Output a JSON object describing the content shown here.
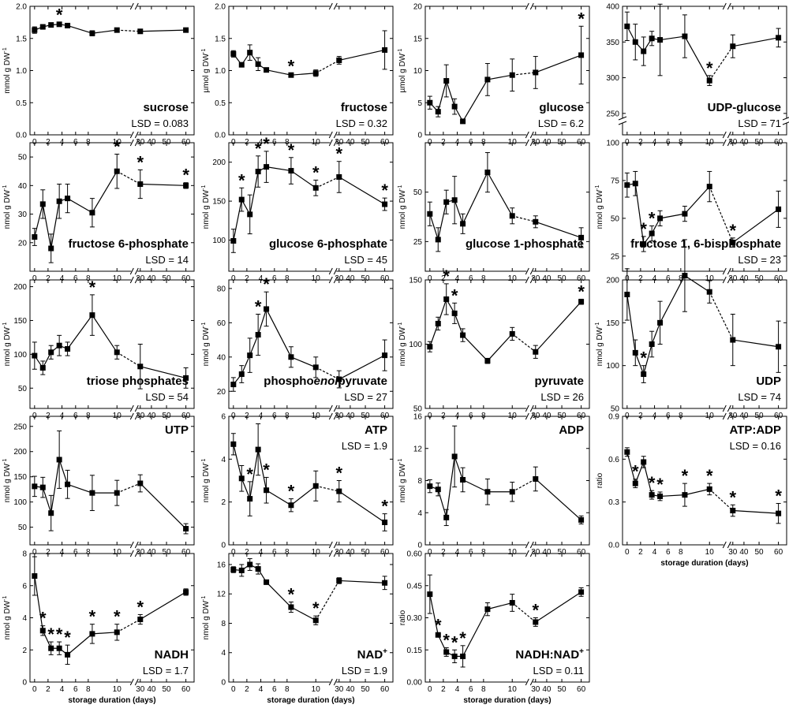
{
  "figure": {
    "x_ticks": [
      0,
      2,
      4,
      6,
      8,
      10,
      30,
      40,
      50,
      60
    ],
    "x_tick_labels": [
      "0",
      "2",
      "4",
      "6",
      "8",
      "10",
      "30",
      "40",
      "50",
      "60"
    ],
    "xlabel": "storage duration (days)"
  },
  "chart_data": [
    {
      "type": "line",
      "name": "sucrose",
      "lsd": "LSD = 0.083",
      "ylabel": "mmol g DW",
      "ylabel_sup": "-1",
      "ylim": [
        0,
        2.0
      ],
      "yticks": [
        0,
        0.5,
        1.0,
        1.5,
        2.0
      ],
      "ytick_labels": [
        "0.0",
        "0.5",
        "1.0",
        "1.5",
        "2.0"
      ],
      "x": [
        0,
        1,
        2,
        3,
        4,
        7,
        10,
        30,
        60
      ],
      "y": [
        1.63,
        1.68,
        1.71,
        1.72,
        1.7,
        1.58,
        1.63,
        1.61,
        1.63
      ],
      "err": [
        0.05,
        0.03,
        0.03,
        0.03,
        0.03,
        0.04,
        0.02,
        0.02,
        0.02
      ],
      "sig": [
        3
      ]
    },
    {
      "type": "line",
      "name": "fructose",
      "lsd": "LSD = 0.32",
      "ylabel": "µmol g DW",
      "ylabel_sup": "-1",
      "ylim": [
        0,
        2.0
      ],
      "yticks": [
        0,
        0.5,
        1.0,
        1.5,
        2.0
      ],
      "ytick_labels": [
        "0.0",
        "0.5",
        "1.0",
        "1.5",
        "2.0"
      ],
      "x": [
        0,
        1,
        2,
        3,
        4,
        7,
        10,
        30,
        60
      ],
      "y": [
        1.26,
        1.09,
        1.28,
        1.1,
        1.01,
        0.93,
        0.96,
        1.16,
        1.32
      ],
      "err": [
        0.05,
        0.03,
        0.12,
        0.1,
        0.03,
        0.02,
        0.05,
        0.06,
        0.3
      ],
      "sig": [
        7
      ]
    },
    {
      "type": "line",
      "name": "glucose",
      "lsd": "LSD = 6.2",
      "ylabel": "µmol g DW",
      "ylabel_sup": "-1",
      "ylim": [
        0,
        20
      ],
      "yticks": [
        0,
        5,
        10,
        15,
        20
      ],
      "ytick_labels": [
        "0",
        "5",
        "10",
        "15",
        "20"
      ],
      "x": [
        0,
        1,
        2,
        3,
        4,
        7,
        10,
        30,
        60
      ],
      "y": [
        5.0,
        3.6,
        8.4,
        4.4,
        2.1,
        8.6,
        9.3,
        9.7,
        12.4
      ],
      "err": [
        1.0,
        0.8,
        2.5,
        1.2,
        0.2,
        2.5,
        2.5,
        2.5,
        4.5
      ],
      "sig": [
        60
      ]
    },
    {
      "type": "line",
      "name": "UDP-glucose",
      "lsd": "LSD = 71",
      "ylabel": "",
      "ylabel_sup": "",
      "ylim": [
        220,
        400
      ],
      "ybreak": true,
      "yticks": [
        250,
        300,
        350,
        400
      ],
      "ytick_labels": [
        "250",
        "300",
        "350",
        "400"
      ],
      "x": [
        0,
        1,
        2,
        3,
        4,
        7,
        10,
        30,
        60
      ],
      "y": [
        372,
        350,
        337,
        355,
        353,
        358,
        296,
        344,
        356
      ],
      "err": [
        20,
        25,
        20,
        10,
        50,
        30,
        7,
        16,
        13
      ],
      "sig": [
        10
      ]
    },
    {
      "type": "line",
      "name": "fructose 6-phosphate",
      "lsd": "LSD = 14",
      "ylabel": "nmol g DW",
      "ylabel_sup": "-1",
      "ylim": [
        10,
        55
      ],
      "yticks": [
        20,
        30,
        40,
        50
      ],
      "ytick_labels": [
        "20",
        "30",
        "40",
        "50"
      ],
      "x": [
        0,
        1,
        2,
        3,
        4,
        7,
        10,
        30,
        60
      ],
      "y": [
        22,
        33.5,
        18,
        34.5,
        35.5,
        30.5,
        45,
        40.5,
        40
      ],
      "err": [
        3,
        5,
        5,
        6,
        5,
        5,
        6,
        5,
        1
      ],
      "sig": [
        10,
        30,
        60
      ]
    },
    {
      "type": "line",
      "name": "glucose 6-phosphate",
      "lsd": "LSD = 45",
      "ylabel": "nmol g DW",
      "ylabel_sup": "-1",
      "ylim": [
        60,
        225
      ],
      "yticks": [
        100,
        150,
        200
      ],
      "ytick_labels": [
        "100",
        "150",
        "200"
      ],
      "x": [
        0,
        1,
        2,
        3,
        4,
        7,
        10,
        30,
        60
      ],
      "y": [
        99,
        152,
        133,
        188,
        194,
        189,
        167,
        181,
        146
      ],
      "err": [
        15,
        15,
        25,
        20,
        20,
        17,
        10,
        20,
        8
      ],
      "sig": [
        1,
        3,
        4,
        7,
        10,
        30,
        60
      ]
    },
    {
      "type": "line",
      "name": "glucose 1-phosphate",
      "lsd": "",
      "ylabel": "nmol g DW",
      "ylabel_sup": "-1",
      "ylim": [
        10,
        75
      ],
      "yticks": [
        25,
        50
      ],
      "ytick_labels": [
        "25",
        "50"
      ],
      "x": [
        0,
        1,
        2,
        3,
        4,
        7,
        10,
        30,
        60
      ],
      "y": [
        39,
        26,
        45,
        46,
        34,
        60,
        38,
        35,
        27
      ],
      "err": [
        6,
        6,
        6,
        12,
        5,
        10,
        4,
        3,
        5
      ],
      "sig": []
    },
    {
      "type": "line",
      "name": "fructose 1, 6-bisphosphate",
      "lsd": "LSD = 23",
      "ylabel": "nmol g DW",
      "ylabel_sup": "-1",
      "ylim": [
        15,
        100
      ],
      "yticks": [
        25,
        50,
        75,
        100
      ],
      "ytick_labels": [
        "25",
        "50",
        "75",
        "100"
      ],
      "x": [
        0,
        1,
        2,
        3,
        4,
        7,
        10,
        30,
        60
      ],
      "y": [
        72,
        73,
        33,
        40,
        50,
        53,
        71,
        34,
        56
      ],
      "err": [
        8,
        8,
        5,
        5,
        5,
        5,
        10,
        3,
        12
      ],
      "sig": [
        2,
        3,
        30
      ]
    },
    {
      "type": "line",
      "name": "triose phosphates",
      "lsd": "LSD = 54",
      "ylabel": "nmol g DW",
      "ylabel_sup": "-1",
      "ylim": [
        20,
        210
      ],
      "yticks": [
        50,
        100,
        150,
        200
      ],
      "ytick_labels": [
        "50",
        "100",
        "150",
        "200"
      ],
      "x": [
        0,
        1,
        2,
        3,
        4,
        7,
        10,
        30,
        60
      ],
      "y": [
        98,
        80,
        103,
        113,
        108,
        158,
        103,
        82,
        65
      ],
      "err": [
        20,
        10,
        10,
        15,
        10,
        30,
        10,
        33,
        15
      ],
      "sig": [
        7
      ]
    },
    {
      "type": "line",
      "name": "phosphoenolpyruvate",
      "name_parts": [
        "phospho",
        "enol",
        "pyruvate"
      ],
      "lsd": "LSD = 27",
      "ylabel": "nmol g DW",
      "ylabel_sup": "-1",
      "ylim": [
        10,
        85
      ],
      "yticks": [
        20,
        40,
        60,
        80
      ],
      "ytick_labels": [
        "20",
        "40",
        "60",
        "80"
      ],
      "x": [
        0,
        1,
        2,
        3,
        4,
        7,
        10,
        30,
        60
      ],
      "y": [
        24,
        30,
        41,
        53,
        68,
        40,
        34,
        27,
        41
      ],
      "err": [
        4,
        5,
        10,
        12,
        10,
        6,
        6,
        5,
        9
      ],
      "sig": [
        3,
        4
      ]
    },
    {
      "type": "line",
      "name": "pyruvate",
      "lsd": "LSD = 26",
      "ylabel": "nmol g DW",
      "ylabel_sup": "-1",
      "ylim": [
        50,
        150
      ],
      "yticks": [
        50,
        100,
        150
      ],
      "ytick_labels": [
        "50",
        "100",
        "150"
      ],
      "x": [
        0,
        1,
        2,
        3,
        4,
        7,
        10,
        30,
        60
      ],
      "y": [
        98,
        116,
        135,
        124,
        107,
        87,
        108,
        94,
        133
      ],
      "err": [
        4,
        5,
        12,
        8,
        5,
        2,
        5,
        5,
        2
      ],
      "sig": [
        2,
        3,
        60
      ]
    },
    {
      "type": "line",
      "name": "UDP",
      "lsd": "LSD = 74",
      "ylabel": "nmol g DW",
      "ylabel_sup": "-1",
      "ylim": [
        50,
        200
      ],
      "yticks": [
        50,
        100,
        150,
        200
      ],
      "ytick_labels": [
        "50",
        "100",
        "150",
        "200"
      ],
      "x": [
        0,
        1,
        2,
        3,
        4,
        7,
        10,
        30,
        60
      ],
      "y": [
        183,
        115,
        90,
        125,
        150,
        205,
        186,
        130,
        122
      ],
      "err": [
        30,
        15,
        10,
        15,
        25,
        42,
        13,
        30,
        30
      ],
      "sig": [
        2
      ]
    },
    {
      "type": "line",
      "name": "UTP",
      "lsd": "",
      "ylabel": "nmol g DW",
      "ylabel_sup": "-1",
      "ylim": [
        15,
        270
      ],
      "yticks": [
        50,
        100,
        150,
        200,
        250
      ],
      "ytick_labels": [
        "50",
        "100",
        "150",
        "200",
        "250"
      ],
      "x": [
        0,
        1,
        2,
        3,
        4,
        7,
        10,
        30,
        60
      ],
      "y": [
        131,
        129,
        78,
        184,
        135,
        118,
        118,
        137,
        47
      ],
      "err": [
        20,
        20,
        35,
        57,
        28,
        35,
        25,
        17,
        10
      ],
      "sig": []
    },
    {
      "type": "line",
      "name": "ATP",
      "lsd": "LSD = 1.9",
      "ylabel": "nmol g DW",
      "ylabel_sup": "-1",
      "ylim": [
        0,
        6
      ],
      "yticks": [
        0,
        2,
        4,
        6
      ],
      "ytick_labels": [
        "0",
        "2",
        "4",
        "6"
      ],
      "x": [
        0,
        1,
        2,
        3,
        4,
        7,
        10,
        30,
        60
      ],
      "y": [
        4.7,
        3.1,
        2.15,
        4.45,
        2.55,
        1.85,
        2.75,
        2.5,
        1.05
      ],
      "err": [
        0.5,
        0.6,
        0.8,
        1.2,
        0.6,
        0.3,
        0.7,
        0.5,
        0.4
      ],
      "sig": [
        2,
        4,
        7,
        30,
        60
      ]
    },
    {
      "type": "line",
      "name": "ADP",
      "lsd": "",
      "ylabel": "nmol g DW",
      "ylabel_sup": "-1",
      "ylim": [
        0,
        16
      ],
      "yticks": [
        0,
        4,
        8,
        12,
        16
      ],
      "ytick_labels": [
        "0",
        "4",
        "8",
        "12",
        "16"
      ],
      "x": [
        0,
        1,
        2,
        3,
        4,
        7,
        10,
        30,
        60
      ],
      "y": [
        7.3,
        6.9,
        3.4,
        11.0,
        8.1,
        6.6,
        6.6,
        8.2,
        3.1
      ],
      "err": [
        0.8,
        0.8,
        1.0,
        3.8,
        1.5,
        1.6,
        1.2,
        1.5,
        0.5
      ],
      "sig": []
    },
    {
      "type": "line",
      "name": "ATP:ADP",
      "lsd": "LSD = 0.16",
      "ylabel": "ratio",
      "ylabel_sup": "",
      "ylim": [
        0,
        0.9
      ],
      "yticks": [
        0,
        0.3,
        0.6,
        0.9
      ],
      "ytick_labels": [
        "0.0",
        "0.3",
        "0.6",
        "0.9"
      ],
      "x": [
        0,
        1,
        2,
        3,
        4,
        7,
        10,
        30,
        60
      ],
      "y": [
        0.65,
        0.43,
        0.58,
        0.35,
        0.34,
        0.35,
        0.39,
        0.24,
        0.22
      ],
      "err": [
        0.03,
        0.03,
        0.04,
        0.03,
        0.03,
        0.08,
        0.04,
        0.04,
        0.07
      ],
      "sig": [
        1,
        3,
        4,
        7,
        10,
        30,
        60
      ]
    },
    {
      "type": "line",
      "name": "NADH",
      "lsd": "LSD = 1.7",
      "ylabel": "nmol g DW",
      "ylabel_sup": "-1",
      "ylim": [
        0,
        8
      ],
      "yticks": [
        0,
        2,
        4,
        6,
        8
      ],
      "ytick_labels": [
        "0",
        "2",
        "4",
        "6",
        "8"
      ],
      "x": [
        0,
        1,
        2,
        3,
        4,
        7,
        10,
        30,
        60
      ],
      "y": [
        6.6,
        3.2,
        2.1,
        2.1,
        1.7,
        3.0,
        3.1,
        3.9,
        5.6
      ],
      "err": [
        1.2,
        0.3,
        0.4,
        0.4,
        0.6,
        0.6,
        0.5,
        0.3,
        0.2
      ],
      "sig": [
        1,
        2,
        3,
        4,
        7,
        10,
        30
      ]
    },
    {
      "type": "line",
      "name": "NAD+",
      "name_parts": [
        "NAD",
        "+"
      ],
      "lsd": "LSD = 1.9",
      "ylabel": "nmol g DW",
      "ylabel_sup": "-1",
      "ylim": [
        0,
        17.5
      ],
      "yticks": [
        0,
        4,
        8,
        12,
        16
      ],
      "ytick_labels": [
        "0",
        "4",
        "8",
        "12",
        "16"
      ],
      "x": [
        0,
        1,
        2,
        3,
        4,
        7,
        10,
        30,
        60
      ],
      "y": [
        15.3,
        15.2,
        16.0,
        15.4,
        13.6,
        10.2,
        8.4,
        13.8,
        13.5
      ],
      "err": [
        0.4,
        0.8,
        0.8,
        0.7,
        0.3,
        0.7,
        0.6,
        0.4,
        0.9
      ],
      "sig": [
        7,
        10
      ]
    },
    {
      "type": "line",
      "name": "NADH:NAD+",
      "name_parts": [
        "NADH:NAD",
        "+"
      ],
      "lsd": "LSD = 0.11",
      "ylabel": "ratio",
      "ylabel_sup": "",
      "ylim": [
        0,
        0.6
      ],
      "yticks": [
        0,
        0.15,
        0.3,
        0.45,
        0.6
      ],
      "ytick_labels": [
        "0.00",
        "0.15",
        "0.30",
        "0.45",
        "0.60"
      ],
      "x": [
        0,
        1,
        2,
        3,
        4,
        7,
        10,
        30,
        60
      ],
      "y": [
        0.41,
        0.22,
        0.14,
        0.12,
        0.12,
        0.34,
        0.37,
        0.28,
        0.42
      ],
      "err": [
        0.09,
        0.01,
        0.02,
        0.03,
        0.05,
        0.03,
        0.04,
        0.02,
        0.02
      ],
      "sig": [
        1,
        2,
        3,
        4,
        30
      ]
    }
  ]
}
